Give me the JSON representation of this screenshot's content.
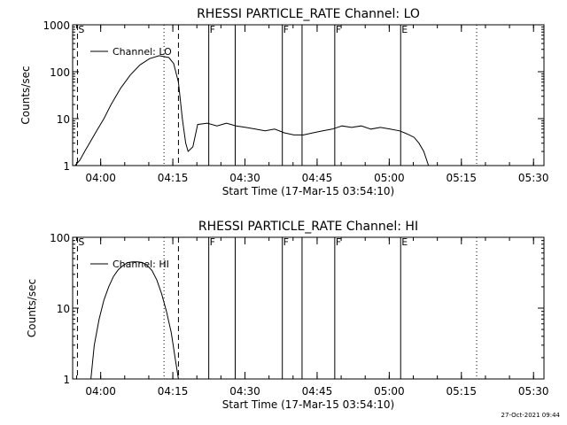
{
  "footer_stamp": "27-Oct-2021 09:44",
  "chart_data": [
    {
      "type": "line",
      "title": "RHESSI PARTICLE_RATE Channel: LO",
      "xlabel": "Start Time (17-Mar-15 03:54:10)",
      "ylabel": "Counts/sec",
      "y_scale": "log",
      "ylim": [
        1,
        1000
      ],
      "y_ticks": [
        1,
        10,
        100,
        1000
      ],
      "y_tick_labels": [
        "1",
        "10",
        "100",
        "1000"
      ],
      "xlim_minutes": [
        0,
        98
      ],
      "x_ticks_minutes": [
        5.83,
        20.83,
        35.83,
        50.83,
        65.83,
        80.83,
        95.83
      ],
      "x_tick_labels": [
        "04:00",
        "04:15",
        "04:30",
        "04:45",
        "05:00",
        "05:15",
        "05:30"
      ],
      "legend": "Channel: LO",
      "markers": [
        {
          "label": "S",
          "minutes": 1.0,
          "style": "dashed"
        },
        {
          "label": "",
          "minutes": 22.0,
          "style": "dashed"
        },
        {
          "label": "",
          "minutes": 19.0,
          "style": "dotted"
        },
        {
          "label": "F",
          "minutes": 28.3,
          "style": "solid"
        },
        {
          "label": "",
          "minutes": 33.8,
          "style": "solid"
        },
        {
          "label": "F",
          "minutes": 43.6,
          "style": "solid"
        },
        {
          "label": "",
          "minutes": 47.7,
          "style": "solid"
        },
        {
          "label": "F",
          "minutes": 54.5,
          "style": "solid"
        },
        {
          "label": "E",
          "minutes": 68.2,
          "style": "solid"
        },
        {
          "label": "",
          "minutes": 84.0,
          "style": "dotted"
        }
      ],
      "series": [
        {
          "name": "Channel: LO",
          "x": [
            0.5,
            1.5,
            2.5,
            3.5,
            5,
            6.5,
            8,
            10,
            12,
            14,
            16,
            18,
            20,
            21,
            22,
            22.8,
            23.5,
            24,
            25,
            26,
            28,
            30,
            32,
            34,
            36,
            38,
            40,
            42,
            44,
            46,
            48,
            50,
            52,
            54,
            56,
            58,
            60,
            62,
            64,
            66,
            68,
            69,
            70,
            71,
            72,
            73,
            74,
            76,
            78,
            80,
            82,
            84,
            86,
            88
          ],
          "y": [
            1,
            1.3,
            2,
            3,
            5.5,
            10,
            20,
            45,
            85,
            140,
            190,
            220,
            200,
            150,
            60,
            10,
            3,
            2,
            2.5,
            7.5,
            8,
            7,
            8,
            7,
            6.5,
            6,
            5.5,
            6,
            5,
            4.5,
            4.5,
            5,
            5.5,
            6,
            7,
            6.5,
            7,
            6,
            6.5,
            6,
            5.5,
            5,
            4.5,
            4,
            3,
            2,
            1,
            1,
            1,
            1,
            1,
            1,
            1,
            1
          ]
        }
      ]
    },
    {
      "type": "line",
      "title": "RHESSI PARTICLE_RATE Channel: HI",
      "xlabel": "Start Time (17-Mar-15 03:54:10)",
      "ylabel": "Counts/sec",
      "y_scale": "log",
      "ylim": [
        1,
        100
      ],
      "y_ticks": [
        1,
        10,
        100
      ],
      "y_tick_labels": [
        "1",
        "10",
        "100"
      ],
      "xlim_minutes": [
        0,
        98
      ],
      "x_ticks_minutes": [
        5.83,
        20.83,
        35.83,
        50.83,
        65.83,
        80.83,
        95.83
      ],
      "x_tick_labels": [
        "04:00",
        "04:15",
        "04:30",
        "04:45",
        "05:00",
        "05:15",
        "05:30"
      ],
      "legend": "Channel: HI",
      "markers": [
        {
          "label": "S",
          "minutes": 1.0,
          "style": "dashed"
        },
        {
          "label": "",
          "minutes": 22.0,
          "style": "dashed"
        },
        {
          "label": "",
          "minutes": 19.0,
          "style": "dotted"
        },
        {
          "label": "F",
          "minutes": 28.3,
          "style": "solid"
        },
        {
          "label": "",
          "minutes": 33.8,
          "style": "solid"
        },
        {
          "label": "F",
          "minutes": 43.6,
          "style": "solid"
        },
        {
          "label": "",
          "minutes": 47.7,
          "style": "solid"
        },
        {
          "label": "F",
          "minutes": 54.5,
          "style": "solid"
        },
        {
          "label": "E",
          "minutes": 68.2,
          "style": "solid"
        },
        {
          "label": "",
          "minutes": 84.0,
          "style": "dotted"
        }
      ],
      "series": [
        {
          "name": "Channel: HI",
          "x": [
            3.8,
            4.5,
            5.5,
            6.5,
            7.5,
            8.5,
            9.5,
            10.5,
            11.5,
            12.5,
            13.5,
            14.5,
            15.5,
            16.5,
            17.5,
            18.5,
            19.5,
            20.5,
            21.3,
            22.0
          ],
          "y": [
            1,
            3,
            7,
            13,
            20,
            28,
            35,
            40,
            44,
            45,
            45,
            44,
            40,
            34,
            25,
            16,
            9,
            4.5,
            2,
            1
          ]
        }
      ]
    }
  ]
}
